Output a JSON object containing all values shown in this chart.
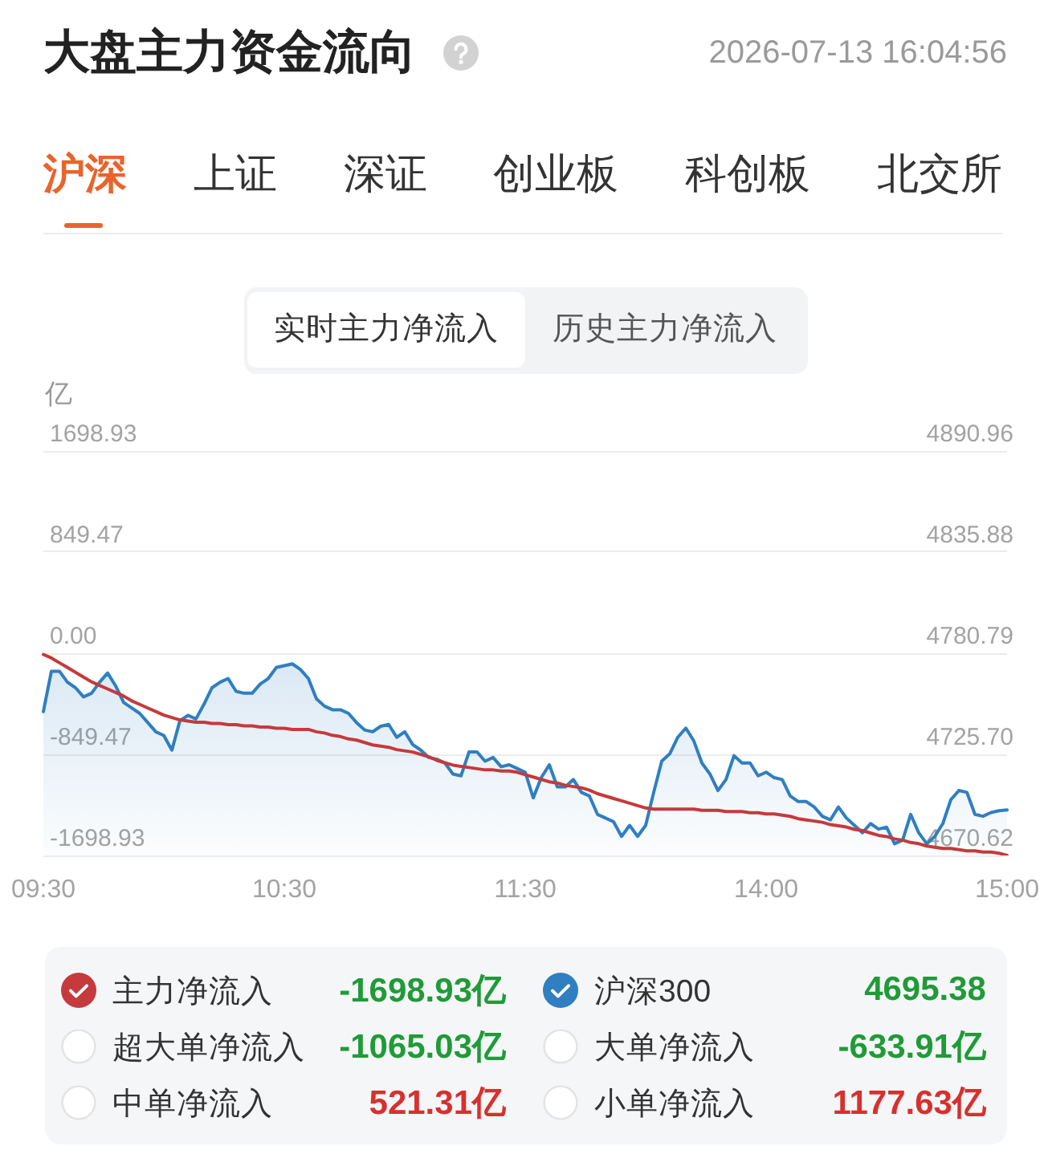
{
  "chart_data": {
    "type": "line",
    "title": "大盘主力资金流向",
    "subtitle": "2026-07-13 16:04:56",
    "ylabel": "亿",
    "categories": [
      "09:30",
      null,
      null,
      null,
      null,
      null,
      null,
      null,
      null,
      null,
      null,
      null,
      null,
      null,
      null,
      null,
      null,
      null,
      null,
      null,
      null,
      null,
      null,
      null,
      null,
      null,
      null,
      null,
      null,
      null,
      "10:30",
      null,
      null,
      null,
      null,
      null,
      null,
      null,
      null,
      null,
      null,
      null,
      null,
      null,
      null,
      null,
      null,
      null,
      null,
      null,
      null,
      null,
      null,
      null,
      null,
      null,
      null,
      null,
      null,
      null,
      "11:30",
      null,
      null,
      null,
      null,
      null,
      null,
      null,
      null,
      null,
      null,
      null,
      null,
      null,
      null,
      null,
      null,
      null,
      null,
      null,
      null,
      null,
      null,
      null,
      null,
      null,
      null,
      null,
      null,
      null,
      "14:00",
      null,
      null,
      null,
      null,
      null,
      null,
      null,
      null,
      null,
      null,
      null,
      null,
      null,
      null,
      null,
      null,
      null,
      null,
      null,
      null,
      null,
      null,
      null,
      null,
      null,
      null,
      null,
      null,
      null,
      "15:00"
    ],
    "ylim": [
      -1698.93,
      1698.93
    ],
    "yticks": [
      -1698.93,
      -849.47,
      {
        "value": 0,
        "label": "0.00"
      },
      849.47,
      1698.93
    ],
    "y2lim": [
      4670.62,
      4890.96
    ],
    "y2ticks": [
      4670.62,
      {
        "value": 4725.7,
        "label": "4725.70"
      },
      4780.79,
      4835.88,
      4890.96
    ],
    "grid": "y",
    "legend": "bottom",
    "marker": "none",
    "series": [
      {
        "name": "主力净流入",
        "color": "#c53a3c",
        "values": [
          -10,
          -40,
          -80,
          -120,
          -160,
          -200,
          -240,
          -270,
          -300,
          -330,
          -360,
          -400,
          -430,
          -460,
          -490,
          -520,
          -540,
          -560,
          -570,
          -580,
          -580,
          -590,
          -590,
          -600,
          -600,
          -610,
          -610,
          -620,
          -620,
          -630,
          -630,
          -640,
          -640,
          -640,
          -660,
          -670,
          -690,
          -700,
          -720,
          -730,
          -750,
          -770,
          -780,
          -790,
          -810,
          -820,
          -830,
          -850,
          -870,
          -900,
          -920,
          -940,
          -950,
          -960,
          -970,
          -980,
          -980,
          -990,
          -990,
          -1000,
          -1020,
          -1040,
          -1060,
          -1080,
          -1090,
          -1110,
          -1120,
          -1130,
          -1150,
          -1180,
          -1200,
          -1220,
          -1240,
          -1260,
          -1280,
          -1300,
          -1310,
          -1310,
          -1310,
          -1310,
          -1310,
          -1310,
          -1320,
          -1320,
          -1320,
          -1330,
          -1330,
          -1330,
          -1340,
          -1340,
          -1350,
          -1350,
          -1360,
          -1370,
          -1390,
          -1400,
          -1410,
          -1420,
          -1440,
          -1450,
          -1460,
          -1480,
          -1490,
          -1510,
          -1530,
          -1540,
          -1560,
          -1570,
          -1590,
          -1600,
          -1620,
          -1630,
          -1640,
          -1640,
          -1650,
          -1660,
          -1660,
          -1670,
          -1670,
          -1680,
          -1698.93
        ]
      },
      {
        "name": "沪深300",
        "type": "area",
        "axis": "y2",
        "color": "#2f7fc1",
        "values": [
          4749,
          4771,
          4771,
          4765,
          4762,
          4757,
          4759,
          4765,
          4770,
          4763,
          4754,
          4751,
          4748,
          4743,
          4738,
          4736,
          4728,
          4744,
          4747,
          4745,
          4753,
          4762,
          4765,
          4767,
          4760,
          4759,
          4759,
          4764,
          4767,
          4773,
          4774,
          4775,
          4772,
          4767,
          4756,
          4752,
          4750,
          4750,
          4748,
          4743,
          4739,
          4738,
          4741,
          4742,
          4735,
          4738,
          4731,
          4728,
          4724,
          4723,
          4721,
          4715,
          4714,
          4727,
          4727,
          4722,
          4724,
          4719,
          4720,
          4718,
          4716,
          4702,
          4713,
          4720,
          4708,
          4708,
          4712,
          4705,
          4703,
          4693,
          4691,
          4689,
          4681,
          4687,
          4681,
          4687,
          4705,
          4722,
          4726,
          4735,
          4740,
          4733,
          4721,
          4715,
          4706,
          4712,
          4725,
          4721,
          4721,
          4714,
          4716,
          4713,
          4712,
          4703,
          4700,
          4700,
          4697,
          4692,
          4690,
          4697,
          4691,
          4687,
          4683,
          4688,
          4685,
          4686,
          4677,
          4679,
          4693,
          4683,
          4677,
          4681,
          4688,
          4701,
          4706,
          4705,
          4693,
          4692,
          4694,
          4695,
          4695.38
        ]
      }
    ],
    "annotations": [
      "沪深",
      "上证",
      "深证",
      "创业板",
      "科创板",
      "北交所",
      "实时主力净流入",
      "历史主力净流入",
      "-1698.93亿",
      "4695.38",
      "超大单净流入",
      "-1065.03亿",
      "大单净流入",
      "-633.91亿",
      "中单净流入",
      "521.31亿",
      "小单净流入",
      "1177.63亿"
    ]
  }
}
